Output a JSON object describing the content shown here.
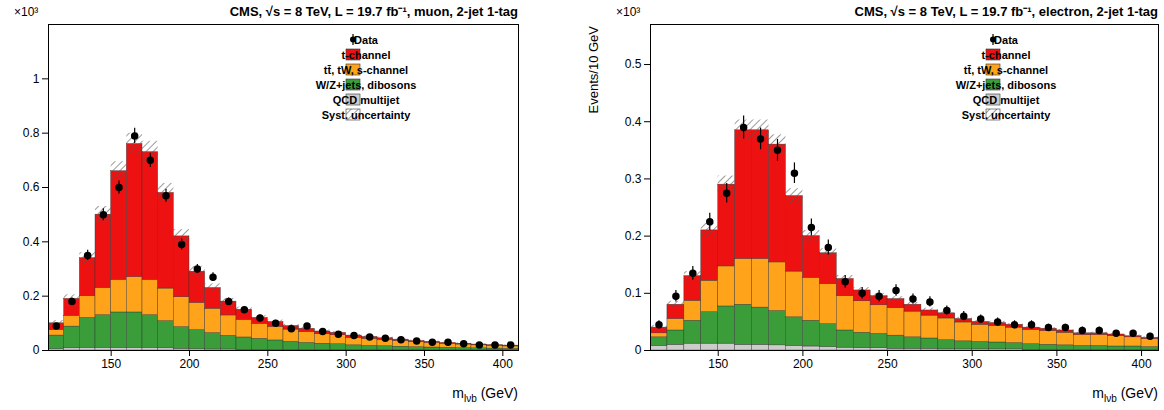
{
  "chart_data": [
    {
      "type": "bar",
      "stacked": true,
      "title": "CMS, √s = 8 TeV, L = 19.7 fb⁻¹, muon, 2-jet 1-tag",
      "y_multiplier": "×10³",
      "xlabel": "mlνb (GeV)",
      "bins": [
        110,
        120,
        130,
        140,
        150,
        160,
        170,
        180,
        190,
        200,
        210,
        220,
        230,
        240,
        250,
        260,
        270,
        280,
        290,
        300,
        310,
        320,
        330,
        340,
        350,
        360,
        370,
        380,
        390,
        400,
        410
      ],
      "xlim": [
        110,
        410
      ],
      "xticks": [
        150,
        200,
        250,
        300,
        350,
        400
      ],
      "ylim": [
        0,
        1.2
      ],
      "yticks": [
        0,
        0.2,
        0.4,
        0.6,
        0.8,
        1
      ],
      "legend": "top-right",
      "series": [
        {
          "name": "t-channel",
          "color": "#ee1111",
          "values": [
            0.025,
            0.062,
            0.14,
            0.27,
            0.4,
            0.49,
            0.47,
            0.352,
            0.224,
            0.115,
            0.076,
            0.051,
            0.037,
            0.022,
            0.018,
            0.013,
            0.012,
            0.01,
            0.009,
            0.008,
            0.007,
            0.006,
            0.005,
            0.004,
            0.004,
            0.003,
            0.003,
            0.003,
            0.003,
            0.003
          ]
        },
        {
          "name": "tt̄, tW, s-channel",
          "color": "#ffa31a",
          "values": [
            0.02,
            0.04,
            0.08,
            0.1,
            0.12,
            0.13,
            0.13,
            0.12,
            0.11,
            0.1,
            0.09,
            0.075,
            0.065,
            0.055,
            0.05,
            0.045,
            0.04,
            0.035,
            0.033,
            0.028,
            0.026,
            0.023,
            0.021,
            0.019,
            0.017,
            0.015,
            0.013,
            0.011,
            0.01,
            0.009
          ]
        },
        {
          "name": "W/Z+jets, dibosons",
          "color": "#3a9d3a",
          "values": [
            0.05,
            0.08,
            0.11,
            0.12,
            0.13,
            0.13,
            0.12,
            0.1,
            0.08,
            0.07,
            0.06,
            0.05,
            0.045,
            0.04,
            0.035,
            0.03,
            0.026,
            0.023,
            0.021,
            0.018,
            0.016,
            0.015,
            0.013,
            0.011,
            0.01,
            0.009,
            0.008,
            0.007,
            0.006,
            0.005
          ]
        },
        {
          "name": "QCD multijet",
          "color": "#cccccc",
          "values": [
            0.005,
            0.008,
            0.01,
            0.01,
            0.01,
            0.01,
            0.01,
            0.008,
            0.006,
            0.005,
            0.004,
            0.004,
            0.003,
            0.003,
            0.002,
            0.002,
            0.002,
            0.002,
            0.002,
            0.001,
            0.001,
            0.001,
            0.001,
            0.001,
            0.001,
            0.001,
            0.001,
            0.001,
            0.001,
            0.001
          ]
        }
      ],
      "data": {
        "name": "Data",
        "color": "#000000",
        "marker": "circle",
        "values": [
          0.09,
          0.18,
          0.35,
          0.5,
          0.6,
          0.79,
          0.7,
          0.57,
          0.39,
          0.3,
          0.27,
          0.18,
          0.15,
          0.12,
          0.1,
          0.08,
          0.09,
          0.07,
          0.06,
          0.055,
          0.05,
          0.045,
          0.04,
          0.035,
          0.03,
          0.03,
          0.025,
          0.02,
          0.02,
          0.02
        ],
        "errors": [
          0.009,
          0.013,
          0.019,
          0.022,
          0.024,
          0.028,
          0.026,
          0.024,
          0.02,
          0.017,
          0.016,
          0.013,
          0.012,
          0.011,
          0.01,
          0.009,
          0.009,
          0.008,
          0.008,
          0.007,
          0.007,
          0.007,
          0.006,
          0.006,
          0.005,
          0.005,
          0.005,
          0.004,
          0.004,
          0.004
        ]
      },
      "uncertainty": {
        "name": "Syst. uncertainty",
        "values": [
          0.01,
          0.015,
          0.02,
          0.03,
          0.035,
          0.04,
          0.04,
          0.035,
          0.025,
          0.02,
          0.015,
          0.012,
          0.01,
          0.008,
          0.007,
          0.006,
          0.006,
          0.005,
          0.005,
          0.004,
          0.004,
          0.004,
          0.003,
          0.003,
          0.003,
          0.003,
          0.003,
          0.002,
          0.002,
          0.002
        ]
      }
    },
    {
      "type": "bar",
      "stacked": true,
      "title": "CMS, √s = 8 TeV, L = 19.7 fb⁻¹, electron, 2-jet 1-tag",
      "y_multiplier": "×10³",
      "xlabel": "mlνb (GeV)",
      "ylabel": "Events/10 GeV",
      "bins": [
        110,
        120,
        130,
        140,
        150,
        160,
        170,
        180,
        190,
        200,
        210,
        220,
        230,
        240,
        250,
        260,
        270,
        280,
        290,
        300,
        310,
        320,
        330,
        340,
        350,
        360,
        370,
        380,
        390,
        400,
        410
      ],
      "xlim": [
        110,
        410
      ],
      "xticks": [
        150,
        200,
        250,
        300,
        350,
        400
      ],
      "ylim": [
        0,
        0.57
      ],
      "yticks": [
        0,
        0.1,
        0.2,
        0.3,
        0.4,
        0.5
      ],
      "legend": "top-right",
      "series": [
        {
          "name": "t-channel",
          "color": "#ee1111",
          "values": [
            0.01,
            0.025,
            0.043,
            0.088,
            0.143,
            0.225,
            0.225,
            0.206,
            0.132,
            0.073,
            0.054,
            0.03,
            0.019,
            0.016,
            0.016,
            0.012,
            0.009,
            0.009,
            0.006,
            0.005,
            0.005,
            0.005,
            0.004,
            0.004,
            0.004,
            0.003,
            0.003,
            0.003,
            0.002,
            0.002
          ]
        },
        {
          "name": "tt̄, tW, s-channel",
          "color": "#ffa31a",
          "values": [
            0.007,
            0.02,
            0.035,
            0.055,
            0.07,
            0.08,
            0.085,
            0.085,
            0.08,
            0.075,
            0.07,
            0.06,
            0.055,
            0.05,
            0.048,
            0.045,
            0.04,
            0.038,
            0.033,
            0.03,
            0.029,
            0.027,
            0.025,
            0.024,
            0.022,
            0.019,
            0.019,
            0.018,
            0.016,
            0.014
          ]
        },
        {
          "name": "W/Z+jets, dibosons",
          "color": "#3a9d3a",
          "values": [
            0.015,
            0.025,
            0.04,
            0.055,
            0.065,
            0.07,
            0.065,
            0.06,
            0.05,
            0.045,
            0.04,
            0.03,
            0.027,
            0.025,
            0.023,
            0.02,
            0.018,
            0.016,
            0.014,
            0.013,
            0.012,
            0.011,
            0.01,
            0.009,
            0.008,
            0.007,
            0.007,
            0.006,
            0.006,
            0.005
          ]
        },
        {
          "name": "QCD multijet",
          "color": "#cccccc",
          "values": [
            0.008,
            0.01,
            0.012,
            0.012,
            0.012,
            0.01,
            0.01,
            0.009,
            0.008,
            0.007,
            0.006,
            0.005,
            0.004,
            0.004,
            0.003,
            0.003,
            0.003,
            0.002,
            0.002,
            0.002,
            0.002,
            0.002,
            0.001,
            0.001,
            0.001,
            0.001,
            0.001,
            0.001,
            0.001,
            0.001
          ]
        }
      ],
      "data": {
        "name": "Data",
        "color": "#000000",
        "marker": "circle",
        "values": [
          0.045,
          0.095,
          0.135,
          0.225,
          0.275,
          0.39,
          0.37,
          0.35,
          0.31,
          0.215,
          0.18,
          0.12,
          0.1,
          0.095,
          0.105,
          0.09,
          0.085,
          0.07,
          0.06,
          0.055,
          0.05,
          0.045,
          0.045,
          0.04,
          0.04,
          0.035,
          0.035,
          0.03,
          0.03,
          0.025
        ],
        "errors": [
          0.007,
          0.01,
          0.012,
          0.015,
          0.017,
          0.02,
          0.019,
          0.019,
          0.018,
          0.015,
          0.013,
          0.011,
          0.01,
          0.01,
          0.01,
          0.009,
          0.009,
          0.008,
          0.008,
          0.007,
          0.007,
          0.007,
          0.007,
          0.006,
          0.006,
          0.006,
          0.006,
          0.005,
          0.005,
          0.005
        ]
      },
      "uncertainty": {
        "name": "Syst. uncertainty",
        "values": [
          0.004,
          0.006,
          0.008,
          0.012,
          0.015,
          0.018,
          0.018,
          0.017,
          0.013,
          0.01,
          0.008,
          0.006,
          0.005,
          0.005,
          0.004,
          0.004,
          0.004,
          0.003,
          0.003,
          0.003,
          0.003,
          0.002,
          0.002,
          0.002,
          0.002,
          0.002,
          0.002,
          0.002,
          0.002,
          0.002
        ]
      }
    }
  ]
}
